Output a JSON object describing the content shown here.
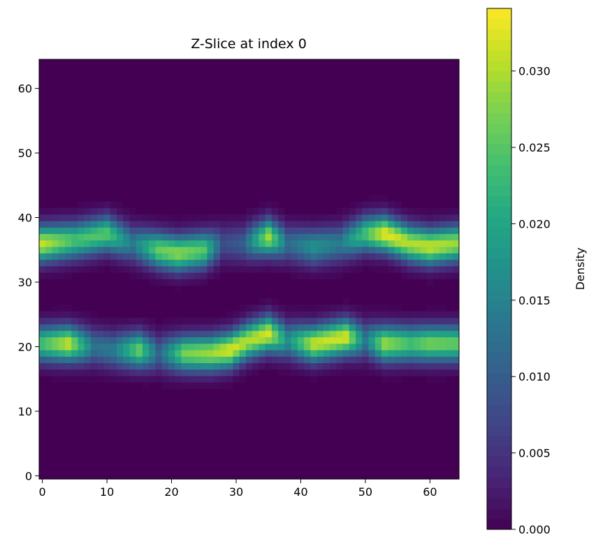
{
  "chart_data": {
    "type": "heatmap",
    "title": "Z-Slice at index 0",
    "xlabel": "",
    "ylabel": "",
    "grid_shape": [
      65,
      65
    ],
    "xlim": [
      -0.5,
      64.5
    ],
    "ylim": [
      -0.5,
      64.5
    ],
    "x_ticks": [
      0,
      10,
      20,
      30,
      40,
      50,
      60
    ],
    "y_ticks": [
      0,
      10,
      20,
      30,
      40,
      50,
      60
    ],
    "colormap": "viridis",
    "colorbar": {
      "label": "Density",
      "range": [
        0.0,
        0.0341
      ],
      "ticks": [
        0.0,
        0.005,
        0.01,
        0.015,
        0.02,
        0.025,
        0.03
      ],
      "tick_labels": [
        "0.000",
        "0.005",
        "0.010",
        "0.015",
        "0.020",
        "0.025",
        "0.030"
      ]
    },
    "bands": [
      {
        "name": "upper",
        "sigma": 1.9,
        "profile": [
          {
            "x": 0,
            "center_y": 36.0,
            "peak": 0.031
          },
          {
            "x": 5,
            "center_y": 36.5,
            "peak": 0.024
          },
          {
            "x": 10,
            "center_y": 37.5,
            "peak": 0.025
          },
          {
            "x": 14,
            "center_y": 36.0,
            "peak": 0.014
          },
          {
            "x": 18,
            "center_y": 35.0,
            "peak": 0.026
          },
          {
            "x": 21,
            "center_y": 34.5,
            "peak": 0.028
          },
          {
            "x": 25,
            "center_y": 35.0,
            "peak": 0.025
          },
          {
            "x": 28,
            "center_y": 36.0,
            "peak": 0.008
          },
          {
            "x": 31,
            "center_y": 36.0,
            "peak": 0.01
          },
          {
            "x": 35,
            "center_y": 37.0,
            "peak": 0.029
          },
          {
            "x": 38,
            "center_y": 36.0,
            "peak": 0.012
          },
          {
            "x": 42,
            "center_y": 35.5,
            "peak": 0.017
          },
          {
            "x": 46,
            "center_y": 36.0,
            "peak": 0.014
          },
          {
            "x": 50,
            "center_y": 37.5,
            "peak": 0.024
          },
          {
            "x": 53,
            "center_y": 37.5,
            "peak": 0.033
          },
          {
            "x": 57,
            "center_y": 36.0,
            "peak": 0.03
          },
          {
            "x": 60,
            "center_y": 35.5,
            "peak": 0.031
          },
          {
            "x": 64,
            "center_y": 36.0,
            "peak": 0.029
          }
        ]
      },
      {
        "name": "lower",
        "sigma": 1.9,
        "profile": [
          {
            "x": 0,
            "center_y": 20.5,
            "peak": 0.024
          },
          {
            "x": 4,
            "center_y": 20.5,
            "peak": 0.031
          },
          {
            "x": 8,
            "center_y": 20.0,
            "peak": 0.013
          },
          {
            "x": 11,
            "center_y": 19.5,
            "peak": 0.014
          },
          {
            "x": 15,
            "center_y": 19.5,
            "peak": 0.026
          },
          {
            "x": 18,
            "center_y": 19.0,
            "peak": 0.011
          },
          {
            "x": 22,
            "center_y": 19.0,
            "peak": 0.027
          },
          {
            "x": 26,
            "center_y": 19.0,
            "peak": 0.029
          },
          {
            "x": 29,
            "center_y": 19.5,
            "peak": 0.032
          },
          {
            "x": 32,
            "center_y": 21.0,
            "peak": 0.03
          },
          {
            "x": 35,
            "center_y": 22.0,
            "peak": 0.032
          },
          {
            "x": 38,
            "center_y": 21.0,
            "peak": 0.017
          },
          {
            "x": 42,
            "center_y": 20.5,
            "peak": 0.031
          },
          {
            "x": 47,
            "center_y": 21.5,
            "peak": 0.032
          },
          {
            "x": 50,
            "center_y": 21.0,
            "peak": 0.014
          },
          {
            "x": 53,
            "center_y": 20.5,
            "peak": 0.029
          },
          {
            "x": 57,
            "center_y": 20.5,
            "peak": 0.024
          },
          {
            "x": 60,
            "center_y": 20.5,
            "peak": 0.027
          },
          {
            "x": 64,
            "center_y": 20.5,
            "peak": 0.026
          }
        ]
      }
    ]
  }
}
